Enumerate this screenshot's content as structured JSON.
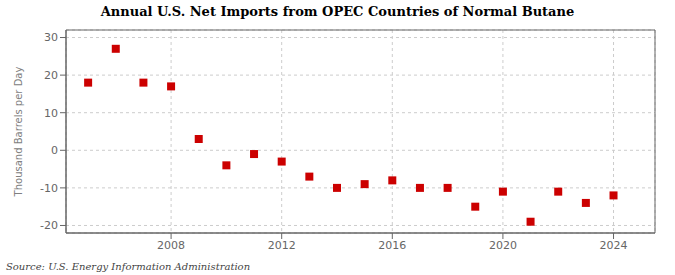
{
  "chart_data": {
    "type": "scatter",
    "title": "Annual U.S. Net Imports from OPEC Countries of Normal Butane",
    "ylabel": "Thousand Barrels per Day",
    "source": "Source: U.S. Energy Information Administration",
    "x": [
      2005,
      2006,
      2007,
      2008,
      2009,
      2010,
      2011,
      2012,
      2013,
      2014,
      2015,
      2016,
      2017,
      2018,
      2019,
      2020,
      2021,
      2022,
      2023,
      2024
    ],
    "values": [
      18,
      27,
      18,
      17,
      3,
      -4,
      -1,
      -3,
      -7,
      -10,
      -9,
      -8,
      -10,
      -10,
      -15,
      -11,
      -19,
      -11,
      -14,
      -12
    ],
    "color": "#cc0000",
    "marker": "square",
    "xlim": [
      2004.2,
      2025.5
    ],
    "ylim": [
      -22,
      32
    ],
    "xticks": [
      2008,
      2012,
      2016,
      2020,
      2024
    ],
    "yticks": [
      -20,
      -10,
      0,
      10,
      20,
      30
    ],
    "grid": true
  }
}
